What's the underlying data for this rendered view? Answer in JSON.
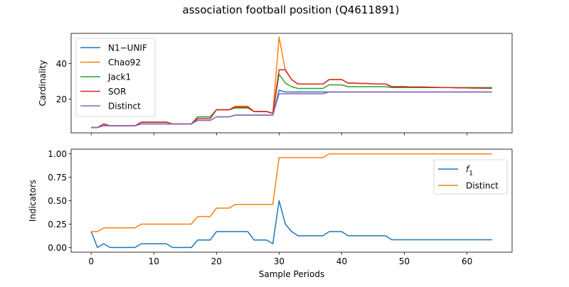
{
  "title": "association football position (Q4611891)",
  "chart_data": [
    {
      "type": "line",
      "ylabel": "Cardinality",
      "xlabel": "",
      "xlim": [
        -3.2,
        67.2
      ],
      "ylim": [
        1,
        57
      ],
      "xticks": [
        0,
        10,
        20,
        30,
        40,
        50,
        60
      ],
      "show_xticklabels": false,
      "yticks": [
        20,
        40
      ],
      "yticklabels": [
        "20",
        "40"
      ],
      "legend_position": "top-left",
      "grid": false,
      "series": [
        {
          "name": "N1−UNIF",
          "color": "#1f77b4",
          "x": [
            0,
            1,
            2,
            3,
            4,
            5,
            6,
            7,
            8,
            9,
            10,
            11,
            12,
            13,
            14,
            15,
            16,
            17,
            18,
            19,
            20,
            21,
            22,
            23,
            24,
            25,
            26,
            27,
            28,
            29,
            30,
            31,
            32,
            33,
            34,
            35,
            36,
            37,
            38,
            39,
            40,
            41,
            42,
            43,
            44,
            45,
            46,
            47,
            48,
            49,
            50,
            51,
            52,
            53,
            54,
            55,
            56,
            57,
            58,
            59,
            60,
            61,
            62,
            63,
            64
          ],
          "values": [
            4,
            4,
            5,
            5,
            5,
            5,
            5,
            5,
            6,
            6,
            6,
            6,
            6,
            6,
            6,
            6,
            6,
            8,
            8,
            8,
            10,
            10,
            10,
            11,
            11,
            11,
            11,
            11,
            11,
            11,
            25,
            24,
            24,
            24,
            24,
            24,
            24,
            24,
            24,
            24,
            24,
            24,
            24,
            24,
            24,
            24,
            24,
            24,
            24,
            24,
            24,
            24,
            24,
            24,
            24,
            24,
            24,
            24,
            24,
            24,
            24,
            24,
            24,
            24,
            24
          ]
        },
        {
          "name": "Chao92",
          "color": "#ff7f0e",
          "x": [
            0,
            1,
            2,
            3,
            4,
            5,
            6,
            7,
            8,
            9,
            10,
            11,
            12,
            13,
            14,
            15,
            16,
            17,
            18,
            19,
            20,
            21,
            22,
            23,
            24,
            25,
            26,
            27,
            28,
            29,
            30,
            31,
            32,
            33,
            34,
            35,
            36,
            37,
            38,
            39,
            40,
            41,
            42,
            43,
            44,
            45,
            46,
            47,
            48,
            49,
            50,
            51,
            52,
            53,
            54,
            55,
            56,
            57,
            58,
            59,
            60,
            61,
            62,
            63,
            64
          ],
          "values": [
            4,
            4,
            6,
            5,
            5,
            5,
            5,
            5,
            7,
            7,
            7,
            7,
            7,
            6,
            6,
            6,
            6,
            10,
            10,
            10,
            14,
            14,
            14,
            16,
            16,
            16,
            13,
            13,
            13,
            12,
            55,
            36,
            31,
            28.5,
            28.5,
            28.5,
            28.5,
            28.5,
            31,
            31,
            31,
            29,
            29,
            28.8,
            28.8,
            28.6,
            28.5,
            28.5,
            27,
            27,
            27,
            26.8,
            26.8,
            26.8,
            26.7,
            26.6,
            26.5,
            26.5,
            26.4,
            26.3,
            26.3,
            26.2,
            26.2,
            26.1,
            26.1
          ]
        },
        {
          "name": "Jack1",
          "color": "#2ca02c",
          "x": [
            0,
            1,
            2,
            3,
            4,
            5,
            6,
            7,
            8,
            9,
            10,
            11,
            12,
            13,
            14,
            15,
            16,
            17,
            18,
            19,
            20,
            21,
            22,
            23,
            24,
            25,
            26,
            27,
            28,
            29,
            30,
            31,
            32,
            33,
            34,
            35,
            36,
            37,
            38,
            39,
            40,
            41,
            42,
            43,
            44,
            45,
            46,
            47,
            48,
            49,
            50,
            51,
            52,
            53,
            54,
            55,
            56,
            57,
            58,
            59,
            60,
            61,
            62,
            63,
            64
          ],
          "values": [
            4,
            4,
            6,
            5,
            5,
            5,
            5,
            5,
            7,
            7,
            7,
            7,
            7,
            6,
            6,
            6,
            6,
            10,
            10,
            10,
            14,
            14,
            14,
            15,
            15,
            15,
            13,
            13,
            13,
            12,
            34,
            29,
            27,
            26,
            26,
            26,
            26,
            26,
            28,
            28,
            28,
            27,
            27,
            27,
            27,
            27,
            27,
            27,
            26.5,
            26.5,
            26.5,
            26.5,
            26.5,
            26.5,
            26.5,
            26.5,
            26.5,
            26.5,
            26.5,
            26.5,
            26.5,
            26.5,
            26.5,
            26.5,
            26.5
          ]
        },
        {
          "name": "SOR",
          "color": "#d62728",
          "x": [
            0,
            1,
            2,
            3,
            4,
            5,
            6,
            7,
            8,
            9,
            10,
            11,
            12,
            13,
            14,
            15,
            16,
            17,
            18,
            19,
            20,
            21,
            22,
            23,
            24,
            25,
            26,
            27,
            28,
            29,
            30,
            31,
            32,
            33,
            34,
            35,
            36,
            37,
            38,
            39,
            40,
            41,
            42,
            43,
            44,
            45,
            46,
            47,
            48,
            49,
            50,
            51,
            52,
            53,
            54,
            55,
            56,
            57,
            58,
            59,
            60,
            61,
            62,
            63,
            64
          ],
          "values": [
            4,
            4,
            6,
            5,
            5,
            5,
            5,
            5,
            7,
            7,
            7,
            7,
            7,
            6,
            6,
            6,
            6,
            9,
            9,
            9,
            14,
            14,
            14,
            15.5,
            15.5,
            15.5,
            13,
            13,
            13,
            12,
            36.5,
            36.5,
            31,
            28.5,
            28.5,
            28.5,
            28.5,
            28.5,
            31,
            31,
            31,
            29,
            29,
            28.8,
            28.8,
            28.6,
            28.5,
            28.5,
            27,
            27,
            27,
            26.8,
            26.8,
            26.8,
            26.7,
            26.6,
            26.5,
            26.5,
            26.4,
            26.3,
            26.3,
            26.2,
            26.2,
            26.1,
            26.1
          ]
        },
        {
          "name": "Distinct",
          "color": "#9467bd",
          "x": [
            0,
            1,
            2,
            3,
            4,
            5,
            6,
            7,
            8,
            9,
            10,
            11,
            12,
            13,
            14,
            15,
            16,
            17,
            18,
            19,
            20,
            21,
            22,
            23,
            24,
            25,
            26,
            27,
            28,
            29,
            30,
            31,
            32,
            33,
            34,
            35,
            36,
            37,
            38,
            39,
            40,
            41,
            42,
            43,
            44,
            45,
            46,
            47,
            48,
            49,
            50,
            51,
            52,
            53,
            54,
            55,
            56,
            57,
            58,
            59,
            60,
            61,
            62,
            63,
            64
          ],
          "values": [
            4,
            4,
            5,
            5,
            5,
            5,
            5,
            5,
            6,
            6,
            6,
            6,
            6,
            6,
            6,
            6,
            6,
            8,
            8,
            8,
            10,
            10,
            10,
            11,
            11,
            11,
            11,
            11,
            11,
            11,
            23,
            23,
            23,
            23,
            23,
            23,
            23,
            23,
            24,
            24,
            24,
            24,
            24,
            24,
            24,
            24,
            24,
            24,
            24,
            24,
            24,
            24,
            24,
            24,
            24,
            24,
            24,
            24,
            24,
            24,
            24,
            24,
            24,
            24,
            24
          ]
        }
      ]
    },
    {
      "type": "line",
      "ylabel": "Indicators",
      "xlabel": "Sample Periods",
      "xlim": [
        -3.2,
        67.2
      ],
      "ylim": [
        -0.05,
        1.05
      ],
      "xticks": [
        0,
        10,
        20,
        30,
        40,
        50,
        60
      ],
      "xticklabels": [
        "0",
        "10",
        "20",
        "30",
        "40",
        "50",
        "60"
      ],
      "yticks": [
        0,
        0.25,
        0.5,
        0.75,
        1.0
      ],
      "yticklabels": [
        "0.00",
        "0.25",
        "0.50",
        "0.75",
        "1.00"
      ],
      "legend_position": "top-right",
      "grid": false,
      "series": [
        {
          "name": "f1",
          "legend_main": "f",
          "legend_sub": "1",
          "color": "#1f77b4",
          "x": [
            0,
            1,
            2,
            3,
            4,
            5,
            6,
            7,
            8,
            9,
            10,
            11,
            12,
            13,
            14,
            15,
            16,
            17,
            18,
            19,
            20,
            21,
            22,
            23,
            24,
            25,
            26,
            27,
            28,
            29,
            30,
            31,
            32,
            33,
            34,
            35,
            36,
            37,
            38,
            39,
            40,
            41,
            42,
            43,
            44,
            45,
            46,
            47,
            48,
            49,
            50,
            51,
            52,
            53,
            54,
            55,
            56,
            57,
            58,
            59,
            60,
            61,
            62,
            63,
            64
          ],
          "values": [
            0.17,
            0,
            0.04,
            0,
            0,
            0,
            0,
            0,
            0.04,
            0.04,
            0.04,
            0.04,
            0.04,
            0,
            0,
            0,
            0,
            0.08,
            0.08,
            0.08,
            0.17,
            0.17,
            0.17,
            0.17,
            0.17,
            0.17,
            0.08,
            0.08,
            0.08,
            0.04,
            0.5,
            0.25,
            0.17,
            0.125,
            0.125,
            0.125,
            0.125,
            0.125,
            0.17,
            0.17,
            0.17,
            0.125,
            0.125,
            0.125,
            0.125,
            0.125,
            0.125,
            0.125,
            0.083,
            0.083,
            0.083,
            0.083,
            0.083,
            0.083,
            0.083,
            0.083,
            0.083,
            0.083,
            0.083,
            0.083,
            0.083,
            0.083,
            0.083,
            0.083,
            0.083
          ]
        },
        {
          "name": "Distinct",
          "color": "#ff7f0e",
          "x": [
            0,
            1,
            2,
            3,
            4,
            5,
            6,
            7,
            8,
            9,
            10,
            11,
            12,
            13,
            14,
            15,
            16,
            17,
            18,
            19,
            20,
            21,
            22,
            23,
            24,
            25,
            26,
            27,
            28,
            29,
            30,
            31,
            32,
            33,
            34,
            35,
            36,
            37,
            38,
            39,
            40,
            41,
            42,
            43,
            44,
            45,
            46,
            47,
            48,
            49,
            50,
            51,
            52,
            53,
            54,
            55,
            56,
            57,
            58,
            59,
            60,
            61,
            62,
            63,
            64
          ],
          "values": [
            0.17,
            0.17,
            0.21,
            0.21,
            0.21,
            0.21,
            0.21,
            0.21,
            0.25,
            0.25,
            0.25,
            0.25,
            0.25,
            0.25,
            0.25,
            0.25,
            0.25,
            0.33,
            0.33,
            0.33,
            0.42,
            0.42,
            0.42,
            0.46,
            0.46,
            0.46,
            0.46,
            0.46,
            0.46,
            0.46,
            0.96,
            0.96,
            0.96,
            0.96,
            0.96,
            0.96,
            0.96,
            0.96,
            1,
            1,
            1,
            1,
            1,
            1,
            1,
            1,
            1,
            1,
            1,
            1,
            1,
            1,
            1,
            1,
            1,
            1,
            1,
            1,
            1,
            1,
            1,
            1,
            1,
            1,
            1
          ]
        }
      ]
    }
  ]
}
